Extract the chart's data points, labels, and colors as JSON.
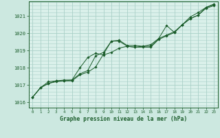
{
  "xlabel": "Graphe pression niveau de la mer (hPa)",
  "ylabel": "",
  "background_color": "#cce8e0",
  "plot_bg_color": "#daf0ea",
  "grid_color": "#aad0c8",
  "line_color": "#1a5c2a",
  "marker_color": "#1a5c2a",
  "xlim": [
    -0.5,
    23.5
  ],
  "ylim": [
    1015.7,
    1021.85
  ],
  "yticks": [
    1016,
    1017,
    1018,
    1019,
    1020,
    1021
  ],
  "xticks": [
    0,
    1,
    2,
    3,
    4,
    5,
    6,
    7,
    8,
    9,
    10,
    11,
    12,
    13,
    14,
    15,
    16,
    17,
    18,
    19,
    20,
    21,
    22,
    23
  ],
  "series": [
    [
      1016.3,
      1016.85,
      1017.1,
      1017.2,
      1017.25,
      1017.25,
      1017.6,
      1017.75,
      1018.05,
      1018.8,
      1019.55,
      1019.55,
      1019.25,
      1019.2,
      1019.2,
      1019.2,
      1019.65,
      1019.85,
      1020.05,
      1020.5,
      1020.85,
      1021.05,
      1021.45,
      1021.6
    ],
    [
      1016.3,
      1016.85,
      1017.1,
      1017.25,
      1017.3,
      1017.3,
      1018.0,
      1018.6,
      1018.85,
      1018.75,
      1018.9,
      1019.15,
      1019.25,
      1019.2,
      1019.25,
      1019.25,
      1019.7,
      1019.9,
      1020.1,
      1020.5,
      1020.85,
      1021.05,
      1021.5,
      1021.65
    ],
    [
      1016.3,
      1016.85,
      1017.2,
      1017.25,
      1017.25,
      1017.3,
      1017.65,
      1017.85,
      1018.7,
      1018.9,
      1019.55,
      1019.6,
      1019.3,
      1019.3,
      1019.25,
      1019.35,
      1019.7,
      1020.45,
      1020.05,
      1020.5,
      1020.95,
      1021.2,
      1021.5,
      1021.7
    ]
  ]
}
